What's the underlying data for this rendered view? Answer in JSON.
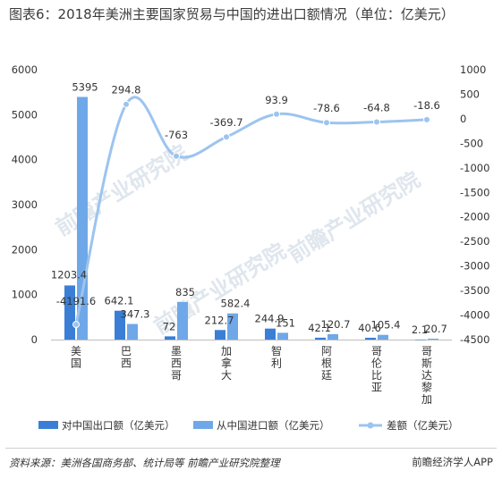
{
  "title": "图表6：2018年美洲主要国家贸易与中国的进出口额情况（单位：亿美元）",
  "source": "资料来源：美洲各国商务部、统计局等 前瞻产业研究院整理",
  "brand": "前瞻经济学人APP",
  "watermark": "前瞻产业研究院",
  "chart_data": {
    "type": "bar",
    "title": "图表6：2018年美洲主要国家贸易与中国的进出口额情况（单位：亿美元）",
    "categories": [
      "美国",
      "巴西",
      "墨西哥",
      "加拿大",
      "智利",
      "阿根廷",
      "哥伦比亚",
      "哥斯达黎加"
    ],
    "series": [
      {
        "name": "对中国出口额（亿美元）",
        "type": "bar",
        "axis": "left",
        "color": "#3a7fd5",
        "values": [
          1203.4,
          642.1,
          72,
          212.7,
          244.9,
          42.1,
          40.6,
          2.1
        ]
      },
      {
        "name": "从中国进口额（亿美元）",
        "type": "bar",
        "axis": "left",
        "color": "#6fa8e8",
        "values": [
          5395,
          347.3,
          835,
          582.4,
          151,
          120.7,
          105.4,
          20.7
        ]
      },
      {
        "name": "差额（亿美元）",
        "type": "line",
        "axis": "right",
        "color": "#9cc4ef",
        "values": [
          -4191.6,
          294.8,
          -763,
          -369.7,
          93.9,
          -78.6,
          -64.8,
          -18.6
        ]
      }
    ],
    "ylim_left": [
      0,
      6000
    ],
    "yticks_left": [
      0,
      1000,
      2000,
      3000,
      4000,
      5000,
      6000
    ],
    "ylim_right": [
      -4500,
      1000
    ],
    "yticks_right": [
      1000,
      500,
      0,
      -500,
      -1000,
      -1500,
      -2000,
      -2500,
      -3000,
      -3500,
      -4000,
      -4500
    ],
    "legend_position": "bottom",
    "grid": false
  }
}
